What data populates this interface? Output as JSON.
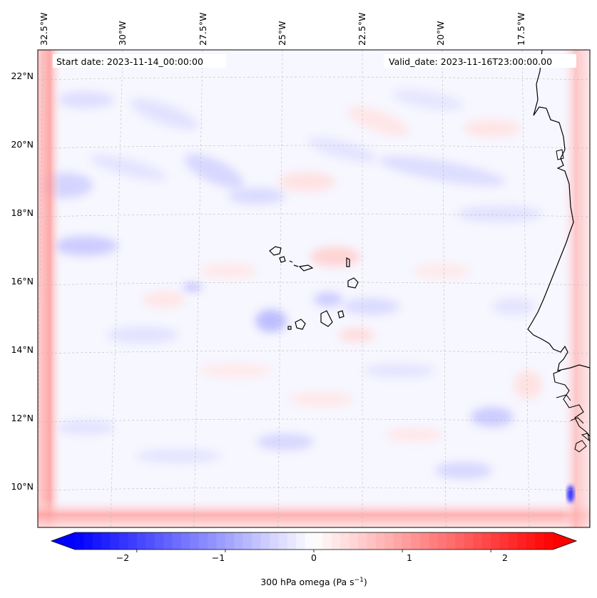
{
  "map": {
    "start_date": "Start date: 2023-11-14_00:00:00",
    "valid_date": "Valid_date: 2023-11-16T23:00:00.00",
    "longitude_labels": [
      "32.5°W",
      "30°W",
      "27.5°W",
      "25°W",
      "22.5°W",
      "20°W",
      "17.5°W"
    ],
    "latitude_labels": [
      "22°N",
      "20°N",
      "18°N",
      "16°N",
      "14°N",
      "12°N",
      "10°N"
    ]
  },
  "colorbar": {
    "ticks": [
      "−2",
      "−1",
      "0",
      "1",
      "2"
    ],
    "label": "300 hPa omega (Pa s",
    "label_exponent": "−1",
    "label_suffix": ")",
    "range": [
      -2.7,
      2.7
    ],
    "colors": {
      "negative": "#0000ff",
      "zero": "#ffffff",
      "positive": "#ff0000"
    }
  }
}
